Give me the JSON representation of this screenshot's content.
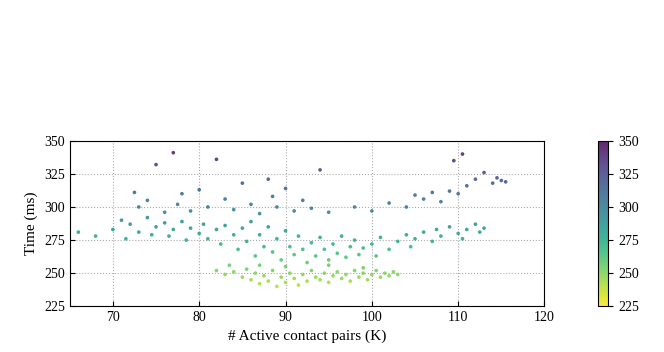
{
  "chart_data": {
    "type": "scatter",
    "xlabel": "# Active contact pairs (K)",
    "ylabel": "Time (ms)",
    "x": [
      82,
      83,
      84,
      85,
      85.5,
      86,
      86.5,
      87,
      87.5,
      88,
      88.5,
      89,
      89.5,
      90,
      90.5,
      91,
      91.5,
      92,
      92.5,
      93,
      93.5,
      94,
      94.5,
      95,
      95.5,
      96,
      96.5,
      97,
      97.5,
      98,
      98.5,
      99,
      99.5,
      100,
      100.5,
      101,
      101.5,
      102,
      102.5,
      103,
      83.5,
      87,
      90,
      95,
      99,
      70,
      71,
      71.5,
      72,
      73,
      74,
      74.5,
      75,
      76,
      76.5,
      77,
      78,
      78.5,
      79,
      80,
      80.5,
      81,
      82,
      82.5,
      83,
      84,
      84.5,
      85,
      85.5,
      86,
      86.5,
      87,
      87.5,
      88,
      88.5,
      89,
      89.5,
      90,
      90.5,
      91,
      91.5,
      92,
      92.5,
      93,
      93.5,
      94,
      94.5,
      95,
      95.5,
      96,
      96.5,
      97,
      97.5,
      98,
      98.5,
      99,
      100,
      100.5,
      101,
      102,
      103,
      104,
      104.5,
      105,
      106,
      107,
      107.5,
      108,
      109,
      110,
      110.5,
      111,
      112,
      112.5,
      113,
      66,
      68,
      72.5,
      73,
      74,
      75,
      76,
      77,
      77.5,
      78,
      79,
      80,
      81,
      82,
      83,
      84,
      85,
      86,
      87,
      88,
      88.5,
      89,
      90,
      91,
      92,
      93,
      94,
      95,
      98,
      100,
      102,
      104,
      105,
      106,
      107,
      108,
      109,
      109.5,
      110,
      110.5,
      111,
      112,
      113,
      114,
      114.5,
      115,
      115.5
    ],
    "values": [
      252,
      249,
      251,
      247,
      253,
      245,
      250,
      242,
      248,
      244,
      252,
      240,
      247,
      243,
      250,
      246,
      241,
      249,
      244,
      252,
      247,
      245,
      250,
      243,
      248,
      251,
      246,
      249,
      244,
      252,
      247,
      250,
      245,
      249,
      252,
      247,
      250,
      248,
      251,
      249,
      256,
      256,
      255,
      256,
      254,
      283,
      290,
      276,
      287,
      281,
      292,
      279,
      285,
      288,
      278,
      283,
      289,
      275,
      284,
      280,
      287,
      276,
      283,
      272,
      286,
      279,
      268,
      284,
      274,
      289,
      263,
      279,
      270,
      285,
      266,
      276,
      260,
      282,
      270,
      264,
      278,
      268,
      258,
      273,
      263,
      277,
      268,
      260,
      272,
      265,
      278,
      262,
      270,
      275,
      264,
      269,
      272,
      263,
      277,
      268,
      274,
      279,
      270,
      276,
      281,
      274,
      283,
      278,
      285,
      280,
      276,
      283,
      287,
      281,
      284,
      281,
      278,
      311,
      300,
      305,
      332,
      296,
      341,
      302,
      310,
      297,
      313,
      300,
      336,
      306,
      298,
      318,
      302,
      295,
      321,
      308,
      300,
      314,
      297,
      305,
      299,
      328,
      296,
      300,
      297,
      303,
      300,
      309,
      306,
      311,
      304,
      312,
      335,
      310,
      340,
      316,
      321,
      326,
      318,
      322,
      320,
      319
    ],
    "xlim": [
      65,
      120
    ],
    "xticks": [
      70,
      80,
      90,
      100,
      110,
      120
    ],
    "ylim": [
      225,
      350
    ],
    "yticks": [
      225,
      250,
      275,
      300,
      325,
      350
    ],
    "colorbar": {
      "range": [
        225,
        350
      ],
      "ticks": [
        225,
        250,
        275,
        300,
        325,
        350
      ]
    },
    "grid": true
  }
}
